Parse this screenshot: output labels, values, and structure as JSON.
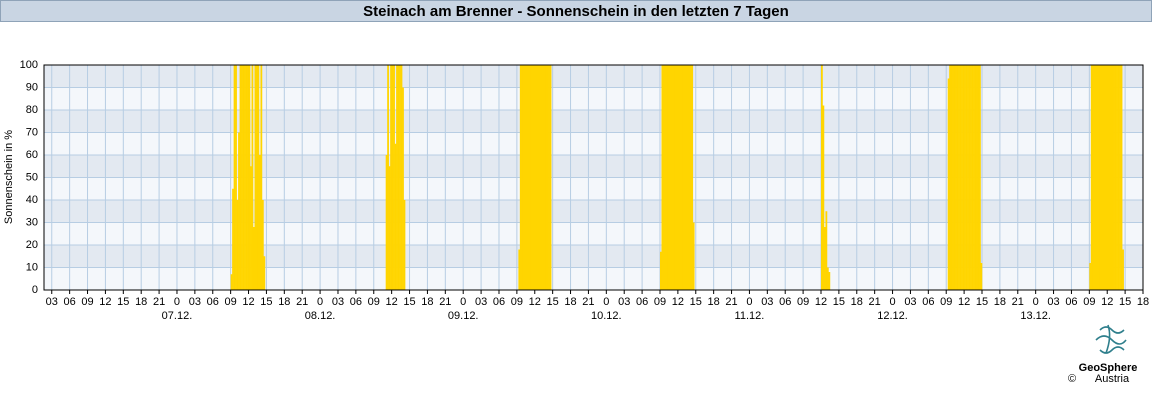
{
  "chart_data": {
    "type": "bar",
    "title": "Steinach am Brenner - Sonnenschein in den letzten 7 Tagen",
    "y_label": "Sonnenschein in %",
    "color": "#ffd500",
    "grid": true,
    "xlim": [
      1.7,
      186
    ],
    "ylim": [
      0,
      100
    ],
    "yticks": [
      0,
      10,
      20,
      30,
      40,
      50,
      60,
      70,
      80,
      90,
      100
    ],
    "xticks": [
      {
        "value": 3,
        "label": "03"
      },
      {
        "value": 6,
        "label": "06"
      },
      {
        "value": 9,
        "label": "09"
      },
      {
        "value": 12,
        "label": "12"
      },
      {
        "value": 15,
        "label": "15"
      },
      {
        "value": 18,
        "label": "18"
      },
      {
        "value": 21,
        "label": "21"
      },
      {
        "value": 24,
        "label": "0"
      },
      {
        "value": 27,
        "label": "03"
      },
      {
        "value": 30,
        "label": "06"
      },
      {
        "value": 33,
        "label": "09"
      },
      {
        "value": 36,
        "label": "12"
      },
      {
        "value": 39,
        "label": "15"
      },
      {
        "value": 42,
        "label": "18"
      },
      {
        "value": 45,
        "label": "21"
      },
      {
        "value": 48,
        "label": "0"
      },
      {
        "value": 51,
        "label": "03"
      },
      {
        "value": 54,
        "label": "06"
      },
      {
        "value": 57,
        "label": "09"
      },
      {
        "value": 60,
        "label": "12"
      },
      {
        "value": 63,
        "label": "15"
      },
      {
        "value": 66,
        "label": "18"
      },
      {
        "value": 69,
        "label": "21"
      },
      {
        "value": 72,
        "label": "0"
      },
      {
        "value": 75,
        "label": "03"
      },
      {
        "value": 78,
        "label": "06"
      },
      {
        "value": 81,
        "label": "09"
      },
      {
        "value": 84,
        "label": "12"
      },
      {
        "value": 87,
        "label": "15"
      },
      {
        "value": 90,
        "label": "18"
      },
      {
        "value": 93,
        "label": "21"
      },
      {
        "value": 96,
        "label": "0"
      },
      {
        "value": 99,
        "label": "03"
      },
      {
        "value": 102,
        "label": "06"
      },
      {
        "value": 105,
        "label": "09"
      },
      {
        "value": 108,
        "label": "12"
      },
      {
        "value": 111,
        "label": "15"
      },
      {
        "value": 114,
        "label": "18"
      },
      {
        "value": 117,
        "label": "21"
      },
      {
        "value": 120,
        "label": "0"
      },
      {
        "value": 123,
        "label": "03"
      },
      {
        "value": 126,
        "label": "06"
      },
      {
        "value": 129,
        "label": "09"
      },
      {
        "value": 132,
        "label": "12"
      },
      {
        "value": 135,
        "label": "15"
      },
      {
        "value": 138,
        "label": "18"
      },
      {
        "value": 141,
        "label": "21"
      },
      {
        "value": 144,
        "label": "0"
      },
      {
        "value": 147,
        "label": "03"
      },
      {
        "value": 150,
        "label": "06"
      },
      {
        "value": 153,
        "label": "09"
      },
      {
        "value": 156,
        "label": "12"
      },
      {
        "value": 159,
        "label": "15"
      },
      {
        "value": 162,
        "label": "18"
      },
      {
        "value": 165,
        "label": "21"
      },
      {
        "value": 168,
        "label": "0"
      },
      {
        "value": 171,
        "label": "03"
      },
      {
        "value": 174,
        "label": "06"
      },
      {
        "value": 177,
        "label": "09"
      },
      {
        "value": 180,
        "label": "12"
      },
      {
        "value": 183,
        "label": "15"
      },
      {
        "value": 186,
        "label": "18"
      }
    ],
    "date_labels": [
      {
        "value": 24,
        "label": "07.12."
      },
      {
        "value": 48,
        "label": "08.12."
      },
      {
        "value": 72,
        "label": "09.12."
      },
      {
        "value": 96,
        "label": "10.12."
      },
      {
        "value": 120,
        "label": "11.12."
      },
      {
        "value": 144,
        "label": "12.12."
      },
      {
        "value": 168,
        "label": "13.12."
      }
    ],
    "x": [
      33,
      33.25,
      33.5,
      33.75,
      34,
      34.25,
      34.5,
      34.75,
      35,
      35.25,
      35.5,
      35.75,
      36,
      36.25,
      36.5,
      36.75,
      37,
      37.25,
      37.5,
      37.75,
      38,
      38.25,
      38.5,
      59,
      59.25,
      59.5,
      59.75,
      60,
      60.25,
      60.5,
      60.75,
      61,
      61.25,
      61.5,
      61.75,
      62,
      81.25,
      81.5,
      81.75,
      82,
      82.25,
      82.5,
      82.75,
      83,
      83.25,
      83.5,
      83.75,
      84,
      84.25,
      84.5,
      84.75,
      85,
      85.25,
      85.5,
      85.75,
      86,
      86.25,
      86.5,
      105,
      105.25,
      105.5,
      105.75,
      106,
      106.25,
      106.5,
      106.75,
      107,
      107.25,
      107.5,
      107.75,
      108,
      108.25,
      108.5,
      108.75,
      109,
      109.25,
      109.5,
      109.75,
      110,
      110.25,
      110.5,
      132,
      132.25,
      132.5,
      132.75,
      133,
      133.25,
      153.25,
      153.5,
      153.75,
      154,
      154.25,
      154.5,
      154.75,
      155,
      155.25,
      155.5,
      155.75,
      156,
      156.25,
      156.5,
      156.75,
      157,
      157.25,
      157.5,
      157.75,
      158,
      158.25,
      158.5,
      158.75,
      177,
      177.25,
      177.5,
      177.75,
      178,
      178.25,
      178.5,
      178.75,
      179,
      179.25,
      179.5,
      179.75,
      180,
      180.25,
      180.5,
      180.75,
      181,
      181.25,
      181.5,
      181.75,
      182,
      182.25,
      182.5
    ],
    "values": [
      7,
      45,
      100,
      100,
      40,
      70,
      100,
      100,
      100,
      100,
      100,
      100,
      100,
      55,
      100,
      28,
      100,
      100,
      100,
      60,
      100,
      40,
      15,
      60,
      100,
      55,
      100,
      100,
      100,
      65,
      100,
      100,
      100,
      100,
      90,
      40,
      18,
      100,
      100,
      100,
      100,
      100,
      100,
      100,
      100,
      100,
      100,
      100,
      100,
      100,
      100,
      100,
      100,
      100,
      100,
      100,
      100,
      100,
      17,
      100,
      100,
      100,
      100,
      100,
      100,
      100,
      100,
      100,
      100,
      100,
      100,
      100,
      100,
      100,
      100,
      100,
      100,
      100,
      100,
      100,
      30,
      100,
      82,
      28,
      35,
      10,
      8,
      94,
      100,
      100,
      100,
      100,
      100,
      100,
      100,
      100,
      100,
      100,
      100,
      100,
      100,
      100,
      100,
      100,
      100,
      100,
      100,
      100,
      100,
      12,
      12,
      100,
      100,
      100,
      100,
      100,
      100,
      100,
      100,
      100,
      100,
      100,
      100,
      100,
      100,
      100,
      100,
      100,
      100,
      100,
      100,
      100,
      18
    ],
    "logo": {
      "name": "GeoSphere",
      "sub": "Austria",
      "copyright": "©"
    }
  }
}
